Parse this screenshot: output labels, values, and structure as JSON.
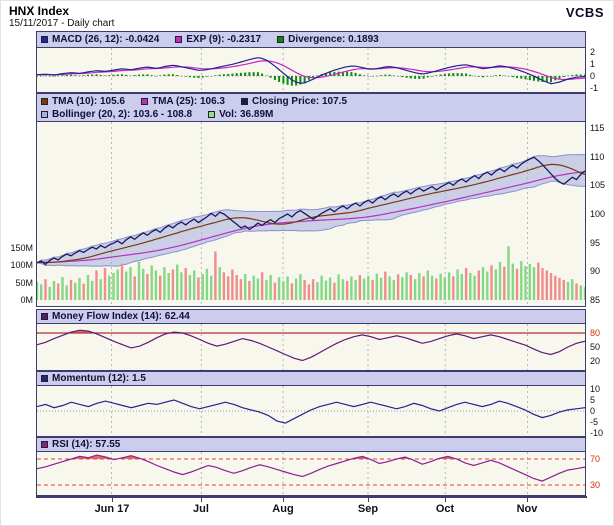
{
  "header": {
    "title": "HNX Index",
    "subtitle": "15/11/2017 - Daily chart",
    "brand": "VCBS"
  },
  "chart_data": [
    {
      "id": "macd",
      "type": "line+histogram",
      "legend": [
        {
          "label": "MACD (26, 12): -0.0424",
          "color": "#2222aa"
        },
        {
          "label": "EXP (9): -0.2317",
          "color": "#cc22cc"
        },
        {
          "label": "Divergence: 0.1893",
          "color": "#0a8a0a"
        }
      ],
      "ylim": [
        -1.33,
        2.33
      ],
      "yticks": [
        {
          "v": 2
        },
        {
          "v": 1
        },
        {
          "v": 0
        },
        {
          "v": -1
        }
      ],
      "signal_period": 9,
      "macd": [
        0.1,
        0.15,
        0.08,
        0.2,
        0.28,
        0.22,
        0.35,
        0.45,
        0.38,
        0.5,
        0.6,
        0.52,
        0.66,
        0.75,
        0.62,
        0.8,
        0.9,
        0.75,
        0.6,
        0.45,
        0.55,
        0.7,
        0.85,
        1.0,
        1.2,
        1.4,
        1.55,
        1.25,
        0.7,
        0.1,
        -0.45,
        -0.65,
        -0.35,
        0.0,
        0.3,
        0.55,
        0.75,
        0.85,
        0.7,
        0.55,
        0.65,
        0.8,
        0.7,
        0.5,
        0.3,
        0.15,
        0.3,
        0.5,
        0.7,
        0.85,
        0.95,
        0.8,
        0.6,
        0.7,
        0.85,
        0.75,
        0.55,
        0.3,
        0.0,
        -0.35,
        -0.65,
        -0.5,
        -0.25,
        -0.1,
        -0.04
      ]
    },
    {
      "id": "price",
      "type": "line+bollinger-band+volume-bars",
      "legend_rows": [
        [
          {
            "label": "TMA (10): 105.6",
            "color": "#7a3a10"
          },
          {
            "label": "TMA (25): 106.3",
            "color": "#b232c4"
          },
          {
            "label": "Closing Price: 107.5",
            "color": "#1a1a5e"
          }
        ],
        [
          {
            "label": "Bollinger (20, 2): 103.6 - 108.8",
            "color": "#a8b0e8"
          },
          {
            "label": "Vol: 36.89M",
            "color": "#90e090"
          }
        ]
      ],
      "ylim": [
        83.95,
        116.05
      ],
      "yticks": [
        {
          "v": 115
        },
        {
          "v": 110
        },
        {
          "v": 105
        },
        {
          "v": 100
        },
        {
          "v": 95
        },
        {
          "v": 90
        },
        {
          "v": 85
        }
      ],
      "vol_yticks": [
        {
          "v": 150,
          "label": "150M"
        },
        {
          "v": 100,
          "label": "100M"
        },
        {
          "v": 50,
          "label": "50M"
        },
        {
          "v": 0,
          "label": "0M"
        }
      ],
      "tma_periods": [
        10,
        25
      ],
      "bollinger": {
        "period": 20,
        "stddev": 2
      },
      "months": [
        {
          "label": "Jun 17",
          "f": 0.136
        },
        {
          "label": "Jul",
          "f": 0.3
        },
        {
          "label": "Aug",
          "f": 0.449
        },
        {
          "label": "Sep",
          "f": 0.604
        },
        {
          "label": "Oct",
          "f": 0.745
        },
        {
          "label": "Nov",
          "f": 0.895
        }
      ],
      "close": [
        91.5,
        91.8,
        91.2,
        91.9,
        92.3,
        92.0,
        92.6,
        93.0,
        92.7,
        93.2,
        93.6,
        93.3,
        93.8,
        94.2,
        93.9,
        94.5,
        94.1,
        94.6,
        94.9,
        95.3,
        94.8,
        95.5,
        96.0,
        95.6,
        96.2,
        96.7,
        96.3,
        96.9,
        97.3,
        96.8,
        97.5,
        98.0,
        97.6,
        98.2,
        98.6,
        98.1,
        98.7,
        99.1,
        98.5,
        99.0,
        99.5,
        100.1,
        99.6,
        100.3,
        100.0,
        99.4,
        98.8,
        98.2,
        97.6,
        97.9,
        97.3,
        97.8,
        98.4,
        98.0,
        98.6,
        99.0,
        98.5,
        99.2,
        99.6,
        100.0,
        99.5,
        100.2,
        100.6,
        100.1,
        99.6,
        99.1,
        99.6,
        100.1,
        100.5,
        100.9,
        100.4,
        101.0,
        101.4,
        100.9,
        101.5,
        101.9,
        101.4,
        102.0,
        102.4,
        101.9,
        102.6,
        103.0,
        102.5,
        103.1,
        103.5,
        103.0,
        103.6,
        104.0,
        103.5,
        104.1,
        104.5,
        104.0,
        104.4,
        104.8,
        104.2,
        104.7,
        105.1,
        105.5,
        105.0,
        105.7,
        106.1,
        105.6,
        106.2,
        106.7,
        106.2,
        106.9,
        107.3,
        106.8,
        107.5,
        107.9,
        107.4,
        108.0,
        108.5,
        108.0,
        108.7,
        109.2,
        109.6,
        109.9,
        109.3,
        108.6,
        107.8,
        107.0,
        106.2,
        105.6,
        105.2,
        105.8,
        106.4,
        106.0,
        106.9,
        107.5
      ],
      "volume_m": [
        52,
        45,
        60,
        38,
        55,
        48,
        66,
        42,
        58,
        50,
        64,
        47,
        72,
        55,
        85,
        60,
        92,
        70,
        78,
        88,
        105,
        82,
        95,
        68,
        110,
        90,
        75,
        100,
        85,
        70,
        95,
        78,
        88,
        102,
        80,
        92,
        72,
        85,
        65,
        75,
        90,
        70,
        140,
        95,
        80,
        68,
        88,
        72,
        60,
        75,
        55,
        70,
        62,
        80,
        58,
        72,
        50,
        66,
        54,
        68,
        48,
        62,
        75,
        58,
        45,
        60,
        52,
        70,
        56,
        65,
        50,
        74,
        60,
        55,
        68,
        58,
        72,
        62,
        70,
        58,
        76,
        64,
        82,
        68,
        58,
        74,
        66,
        80,
        72,
        60,
        78,
        68,
        85,
        70,
        62,
        76,
        66,
        80,
        68,
        88,
        75,
        92,
        78,
        70,
        85,
        95,
        82,
        100,
        88,
        110,
        96,
        155,
        105,
        90,
        112,
        98,
        104,
        95,
        108,
        92,
        85,
        78,
        70,
        64,
        58,
        52,
        60,
        48,
        42,
        36.89
      ]
    },
    {
      "id": "mfi",
      "type": "line",
      "legend": [
        {
          "label": "Money Flow Index (14): 62.44",
          "color": "#5c1a78"
        }
      ],
      "ylim": [
        0.7,
        99.3
      ],
      "yticks": [
        {
          "v": 80,
          "red": true
        },
        {
          "v": 50
        },
        {
          "v": 20
        }
      ],
      "overbought": 80,
      "values": [
        55,
        60,
        68,
        75,
        82,
        86,
        84,
        78,
        70,
        62,
        55,
        48,
        52,
        60,
        70,
        78,
        82,
        80,
        74,
        66,
        58,
        52,
        56,
        62,
        68,
        64,
        58,
        50,
        42,
        34,
        26,
        21,
        28,
        38,
        48,
        58,
        66,
        72,
        76,
        72,
        66,
        70,
        74,
        70,
        64,
        58,
        62,
        68,
        74,
        78,
        74,
        68,
        72,
        76,
        72,
        66,
        60,
        54,
        46,
        38,
        34,
        40,
        50,
        58,
        62.44
      ]
    },
    {
      "id": "momentum",
      "type": "line",
      "legend": [
        {
          "label": "Momentum (12): 1.5",
          "color": "#22228c"
        }
      ],
      "ylim": [
        -11.36,
        11.36
      ],
      "yticks": [
        {
          "v": 10
        },
        {
          "v": 5
        },
        {
          "v": 0
        },
        {
          "v": -5
        },
        {
          "v": -10
        }
      ],
      "zero_line": 0,
      "values": [
        2.0,
        3.0,
        1.5,
        2.5,
        4.0,
        3.0,
        2.0,
        3.5,
        4.5,
        3.5,
        2.5,
        1.5,
        2.5,
        3.5,
        3.0,
        4.0,
        5.0,
        3.5,
        2.0,
        1.0,
        2.0,
        3.0,
        4.0,
        3.0,
        1.5,
        0.5,
        -0.5,
        -2.0,
        -4.5,
        -5.5,
        -3.5,
        -1.5,
        0.5,
        2.0,
        3.0,
        4.0,
        3.0,
        2.0,
        3.0,
        4.0,
        3.0,
        2.0,
        1.0,
        2.0,
        3.5,
        2.5,
        1.0,
        0.0,
        1.5,
        3.0,
        4.0,
        3.0,
        2.0,
        3.0,
        4.5,
        3.5,
        2.0,
        0.5,
        -1.5,
        -3.0,
        -2.0,
        -0.5,
        0.5,
        1.0,
        1.5
      ]
    },
    {
      "id": "rsi",
      "type": "line",
      "legend": [
        {
          "label": "RSI (14): 57.55",
          "color": "#8c2090"
        }
      ],
      "ylim": [
        14.6,
        80.77
      ],
      "yticks": [
        {
          "v": 70,
          "red": true
        },
        {
          "v": 30,
          "red": true
        }
      ],
      "overbought": 70,
      "oversold": 30,
      "values": [
        55,
        58,
        62,
        66,
        70,
        74,
        72,
        76,
        73,
        69,
        72,
        75,
        71,
        66,
        60,
        55,
        50,
        46,
        50,
        55,
        60,
        57,
        52,
        48,
        52,
        57,
        61,
        58,
        54,
        50,
        46,
        43,
        48,
        54,
        59,
        63,
        67,
        71,
        74,
        69,
        63,
        66,
        70,
        73,
        68,
        62,
        66,
        71,
        74,
        70,
        64,
        60,
        64,
        68,
        64,
        58,
        52,
        46,
        40,
        36,
        42,
        48,
        53,
        55,
        57.55
      ]
    }
  ]
}
